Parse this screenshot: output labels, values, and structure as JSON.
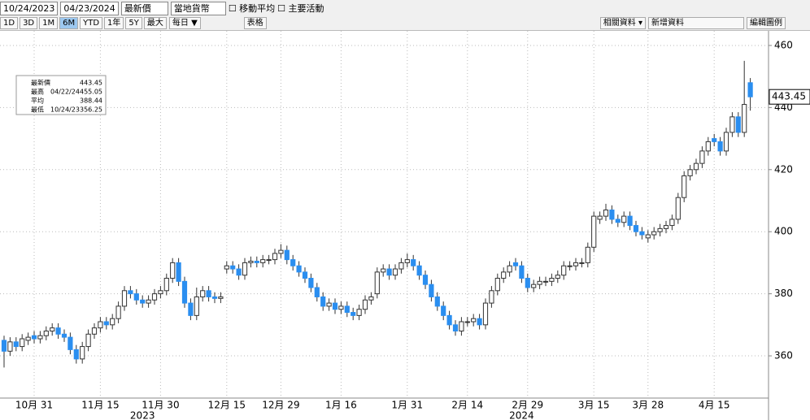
{
  "toolbar": {
    "start_date": "10/24/2023",
    "end_date": "04/23/2024",
    "field": "最新價",
    "currency": "當地貨幣",
    "moving_average": "移動平均",
    "events": "主要活動",
    "ranges": [
      "1D",
      "3D",
      "1M",
      "6M",
      "YTD",
      "1年",
      "5Y",
      "最大"
    ],
    "active_range": "6M",
    "frequency": "每日 ▼",
    "table": "表格",
    "related": "相關資料 ▾",
    "add": "新增資料",
    "edit_legend": "編輯圖例"
  },
  "chart_data": {
    "type": "candlestick",
    "up_color": "#ffffff",
    "down_color": "#2a8ef0",
    "grid": true,
    "categories": [
      null,
      null,
      null,
      null,
      null,
      "10月 31",
      null,
      null,
      null,
      null,
      null,
      null,
      null,
      null,
      null,
      null,
      "11月 15",
      null,
      null,
      null,
      null,
      null,
      null,
      null,
      null,
      null,
      "11月 30",
      null,
      null,
      null,
      null,
      null,
      null,
      null,
      null,
      null,
      null,
      "12月 15",
      null,
      null,
      null,
      null,
      null,
      null,
      null,
      null,
      "12月 29",
      null,
      null,
      null,
      null,
      null,
      null,
      null,
      null,
      null,
      "1月 16",
      null,
      null,
      null,
      null,
      null,
      null,
      null,
      null,
      null,
      null,
      "1月 31",
      null,
      null,
      null,
      null,
      null,
      null,
      null,
      null,
      null,
      "2月 14",
      null,
      null,
      null,
      null,
      null,
      null,
      null,
      null,
      null,
      "2月 29",
      null,
      null,
      null,
      null,
      null,
      null,
      null,
      null,
      null,
      null,
      "3月 15",
      null,
      null,
      null,
      null,
      null,
      null,
      null,
      null,
      "3月 28",
      null,
      null,
      null,
      null,
      null,
      null,
      null,
      null,
      null,
      null,
      "4月 15",
      null,
      null,
      null,
      null,
      null,
      null
    ],
    "years": [
      "2023",
      "2024"
    ],
    "open": [
      365,
      361.5,
      364.5,
      363,
      365,
      366.5,
      365.5,
      366.5,
      368,
      369,
      367,
      366,
      362,
      359,
      363,
      367,
      369,
      371,
      370,
      372,
      376,
      381,
      380,
      378,
      377,
      378,
      380,
      381,
      385,
      390,
      384,
      377,
      373,
      379,
      381,
      379,
      378.5,
      388,
      389,
      388,
      386,
      390,
      390.5,
      390,
      391,
      391,
      393,
      394,
      391,
      389,
      387,
      385,
      382,
      379,
      376,
      377,
      375,
      376,
      374,
      373,
      375,
      378,
      380,
      387,
      388,
      386,
      388,
      390,
      391,
      389,
      386,
      383,
      379,
      376,
      373,
      370,
      368,
      371,
      371,
      372,
      370,
      377,
      381,
      385,
      387,
      390,
      389,
      385,
      382,
      383,
      384,
      384,
      385,
      386,
      389,
      389,
      390,
      390,
      395,
      404,
      405,
      407,
      404,
      403,
      405,
      402,
      400,
      398,
      399,
      400,
      401,
      402,
      404,
      411,
      418,
      420,
      422,
      426,
      430,
      429,
      426,
      432,
      437,
      432,
      448
    ],
    "high": [
      366.5,
      366,
      366,
      367,
      367.5,
      368,
      368,
      369.5,
      370.5,
      370.5,
      368.5,
      367.5,
      363.5,
      364.5,
      368.5,
      370.5,
      372.5,
      372.5,
      373.5,
      377.5,
      382.5,
      382.5,
      381.5,
      379.5,
      379.5,
      381.5,
      382.5,
      386.5,
      391.5,
      391.5,
      385.5,
      378.5,
      382,
      382.5,
      382.5,
      380.5,
      380.5,
      390.5,
      390.5,
      389.5,
      391.5,
      392,
      392,
      392.5,
      392.5,
      394.5,
      396,
      395.5,
      392.5,
      390.5,
      388.5,
      386.5,
      383.5,
      380.5,
      378.5,
      378.5,
      377.5,
      377.5,
      375.5,
      376.5,
      379.5,
      380.5,
      388.5,
      389.5,
      389.5,
      389.5,
      391.5,
      393,
      392.5,
      390.5,
      387.5,
      384.5,
      380.5,
      377.5,
      374.5,
      371.5,
      372.5,
      372.5,
      373.5,
      373.5,
      378.5,
      382.5,
      386.5,
      388.5,
      390.5,
      391.5,
      390.5,
      386.5,
      384.5,
      385.5,
      385.5,
      386.5,
      387.5,
      390.5,
      390.5,
      391.5,
      391.5,
      396.5,
      406.5,
      406.5,
      409,
      408.5,
      405.5,
      406.5,
      406.5,
      403.5,
      401.5,
      400.5,
      401.5,
      402.5,
      403.5,
      405.5,
      412.5,
      419.5,
      421.5,
      423.5,
      427.5,
      430.5,
      431.5,
      430.5,
      433.5,
      438.5,
      438.5,
      455.05,
      449.5
    ],
    "low": [
      356.25,
      360,
      361.5,
      361.5,
      363.5,
      364,
      364,
      365,
      366.5,
      365.5,
      364.5,
      360.5,
      357.5,
      357.5,
      361.5,
      365.5,
      367.5,
      368.5,
      368.5,
      370.5,
      374.5,
      378.5,
      376.5,
      375.5,
      375.5,
      376.5,
      378.5,
      379.5,
      383.5,
      382.5,
      375.5,
      371.5,
      371.5,
      377.5,
      377.5,
      377,
      377,
      386.5,
      386.5,
      384.5,
      384.5,
      388.5,
      388.5,
      388.5,
      389.5,
      389.5,
      391.5,
      389.5,
      387.5,
      385.5,
      383.5,
      380.5,
      377.5,
      374.5,
      374.5,
      373.5,
      373.5,
      372.5,
      371.5,
      371.5,
      373.5,
      376.5,
      378.5,
      385.5,
      384.5,
      384.5,
      386.5,
      388.5,
      387.5,
      384.5,
      381.5,
      377.5,
      374.5,
      371.5,
      368.5,
      366.5,
      366.5,
      369.5,
      369.5,
      368.5,
      368.5,
      375.5,
      379.5,
      383.5,
      385.5,
      387.5,
      383.5,
      380.5,
      380.5,
      381.5,
      382.5,
      382.5,
      383.5,
      384.5,
      387.5,
      387.5,
      388.5,
      388.5,
      393.5,
      402.5,
      403.5,
      402.5,
      401.5,
      401.5,
      400.5,
      398.5,
      397.5,
      396.5,
      397.5,
      398.5,
      399.5,
      400.5,
      402.5,
      409.5,
      416.5,
      418.5,
      420.5,
      424.5,
      427.5,
      424.5,
      424.5,
      430.5,
      430.5,
      430.5,
      439
    ],
    "close": [
      361.5,
      364.5,
      363,
      365.5,
      366,
      365.5,
      366.5,
      368,
      369,
      367,
      366,
      362,
      359,
      363,
      367,
      369,
      371,
      370,
      372,
      376,
      381,
      380,
      378,
      377,
      378,
      380,
      381,
      385,
      390,
      384,
      377,
      373,
      379,
      381,
      379,
      378.5,
      379,
      389,
      388,
      386,
      390,
      390.5,
      390,
      391,
      391,
      393,
      394,
      391,
      389,
      387,
      385,
      382,
      379,
      376,
      377,
      375,
      376,
      374,
      373,
      375,
      378,
      379,
      387,
      388,
      386,
      388,
      390,
      391,
      389,
      386,
      383,
      379,
      376,
      373,
      370,
      368,
      371,
      371,
      372,
      370,
      377,
      381,
      385,
      387,
      389,
      389,
      385,
      382,
      383,
      384,
      384,
      385,
      386,
      389,
      389,
      390,
      390,
      395,
      405,
      405,
      407,
      404,
      403,
      405,
      402,
      400,
      399,
      399,
      400,
      401,
      402,
      404,
      411,
      418,
      420,
      422,
      426,
      429,
      429,
      426,
      432,
      437,
      432,
      441,
      443.45
    ],
    "ylim": [
      346.4,
      464.7
    ],
    "yticks": [
      360,
      380,
      400,
      420,
      440,
      460
    ],
    "stats": [
      {
        "label": "最新價",
        "value": 443.45
      },
      {
        "label": "最高",
        "date": "04/22/24",
        "value": 455.05
      },
      {
        "label": "平均",
        "value": 388.44
      },
      {
        "label": "最低",
        "date": "10/24/23",
        "value": 356.25
      }
    ]
  }
}
